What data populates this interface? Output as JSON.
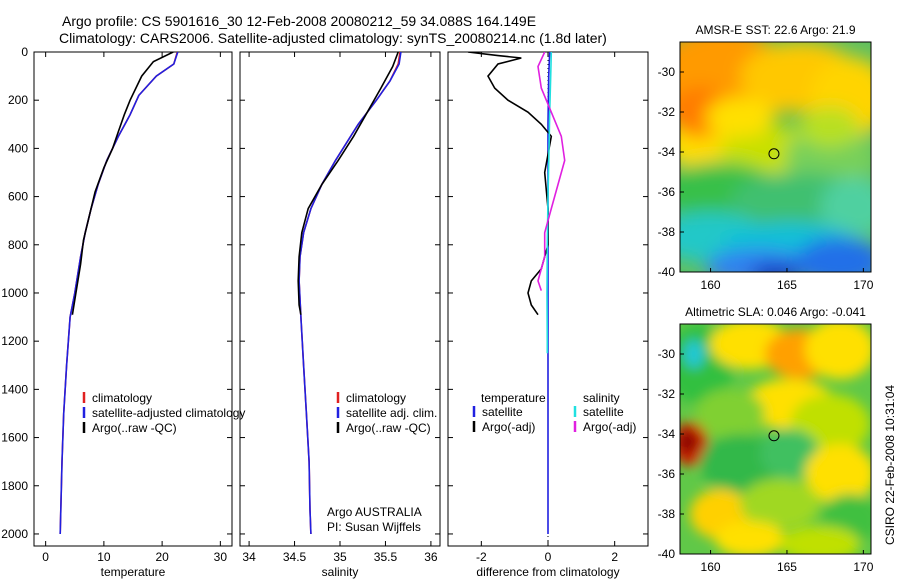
{
  "header": {
    "line1": "Argo profile: CS 5901616_30 12-Feb-2008 20080212_59 34.088S 164.149E",
    "line2": "Climatology: CARS2006. Satellite-adjusted climatology: synTS_20080214.nc (1.8d later)"
  },
  "footer": {
    "credit": "CSIRO 22-Feb-2008 10:31:04",
    "argo_label": "Argo AUSTRALIA",
    "pi_label": "PI: Susan Wijffels"
  },
  "colors": {
    "climatology": "#e02020",
    "satellite": "#2020e0",
    "argo": "#000000",
    "satellite_sal": "#20e0e0",
    "argo_sal": "#e020e0"
  },
  "chart_data": [
    {
      "type": "line",
      "panel": "temperature",
      "xlabel": "temperature",
      "ylabel": "",
      "xlim": [
        -2,
        32
      ],
      "ylim": [
        2050,
        0
      ],
      "xticks": [
        0,
        10,
        20,
        30
      ],
      "yticks": [
        0,
        200,
        400,
        600,
        800,
        1000,
        1200,
        1400,
        1600,
        1800,
        2000
      ],
      "legend": [
        "climatology",
        "satellite-adjusted climatology",
        "Argo(..raw -QC)"
      ],
      "series": [
        {
          "name": "climatology",
          "color": "#e02020",
          "x": [
            22.6,
            22.0,
            19.0,
            16.0,
            14.5,
            12.5,
            10.5,
            9.0,
            7.8,
            6.8,
            6.0,
            5.0,
            4.2,
            3.6,
            3.1,
            2.8,
            2.6,
            2.5
          ],
          "y": [
            0,
            50,
            100,
            180,
            260,
            350,
            450,
            550,
            650,
            750,
            850,
            1000,
            1100,
            1300,
            1500,
            1700,
            1900,
            2000
          ]
        },
        {
          "name": "satellite-adjusted climatology",
          "color": "#2020e0",
          "x": [
            22.7,
            22.0,
            19.0,
            16.0,
            14.5,
            12.5,
            10.5,
            9.0,
            7.8,
            6.8,
            6.0,
            5.0,
            4.2,
            3.6,
            3.1,
            2.8,
            2.6,
            2.5
          ],
          "y": [
            0,
            50,
            100,
            180,
            260,
            350,
            450,
            550,
            650,
            750,
            850,
            1000,
            1100,
            1300,
            1500,
            1700,
            1900,
            2000
          ]
        },
        {
          "name": "Argo(..raw -QC)",
          "color": "#000000",
          "x": [
            21.9,
            18.5,
            16.5,
            15.5,
            14.5,
            13.5,
            12.5,
            11.5,
            10.0,
            8.5,
            7.5,
            6.5,
            6.0,
            5.2,
            4.6
          ],
          "y": [
            0,
            40,
            100,
            150,
            200,
            260,
            330,
            400,
            480,
            580,
            680,
            780,
            880,
            1000,
            1090
          ]
        }
      ]
    },
    {
      "type": "line",
      "panel": "salinity",
      "xlabel": "salinity",
      "ylabel": "",
      "xlim": [
        33.9,
        36.1
      ],
      "ylim": [
        2050,
        0
      ],
      "xticks": [
        34,
        34.5,
        35,
        35.5,
        36
      ],
      "legend": [
        "climatology",
        "satellite adj. clim.",
        "Argo(..raw -QC)"
      ],
      "series": [
        {
          "name": "climatology",
          "color": "#e02020",
          "x": [
            35.66,
            35.64,
            35.55,
            35.4,
            35.2,
            34.95,
            34.8,
            34.68,
            34.6,
            34.56,
            34.55,
            34.57,
            34.6,
            34.63,
            34.66,
            34.67,
            34.68
          ],
          "y": [
            0,
            50,
            120,
            200,
            300,
            450,
            550,
            650,
            750,
            850,
            950,
            1100,
            1300,
            1500,
            1700,
            1900,
            2000
          ]
        },
        {
          "name": "satellite adj. clim.",
          "color": "#2020e0",
          "x": [
            35.67,
            35.65,
            35.55,
            35.4,
            35.2,
            34.95,
            34.8,
            34.68,
            34.6,
            34.56,
            34.55,
            34.57,
            34.6,
            34.63,
            34.66,
            34.67,
            34.68
          ],
          "y": [
            0,
            50,
            120,
            200,
            300,
            450,
            550,
            650,
            750,
            850,
            950,
            1100,
            1300,
            1500,
            1700,
            1900,
            2000
          ]
        },
        {
          "name": "Argo(..raw -QC)",
          "color": "#000000",
          "x": [
            35.64,
            35.58,
            35.45,
            35.3,
            35.15,
            34.98,
            34.8,
            34.65,
            34.58,
            34.55,
            34.54,
            34.55,
            34.57
          ],
          "y": [
            0,
            60,
            150,
            250,
            350,
            450,
            550,
            650,
            750,
            850,
            950,
            1050,
            1090
          ]
        }
      ]
    },
    {
      "type": "line",
      "panel": "difference",
      "xlabel": "difference from climatology",
      "ylabel": "",
      "xlim": [
        -3,
        3
      ],
      "ylim": [
        2050,
        0
      ],
      "xticks": [
        -2,
        0,
        2
      ],
      "legend_headers": [
        "temperature",
        "salinity"
      ],
      "legend": [
        "satellite",
        "Argo(-adj)",
        "satellite",
        "Argo(-adj)"
      ],
      "series": [
        {
          "name": "temperature satellite",
          "color": "#2020e0",
          "x": [
            0.05,
            0.02,
            0.0,
            0.0,
            0.0,
            0.0,
            0.0
          ],
          "y": [
            0,
            100,
            300,
            600,
            900,
            1200,
            2000
          ]
        },
        {
          "name": "temperature Argo(-adj)",
          "color": "#000000",
          "x": [
            -2.4,
            -1.5,
            -0.8,
            -1.5,
            -1.8,
            -1.6,
            -1.2,
            -0.6,
            -0.2,
            0.1,
            -0.1,
            0.0,
            0.0,
            -0.2,
            -0.5,
            -0.6,
            -0.5,
            -0.3
          ],
          "y": [
            0,
            15,
            25,
            50,
            100,
            150,
            200,
            250,
            300,
            350,
            500,
            650,
            800,
            900,
            950,
            1000,
            1050,
            1090
          ]
        },
        {
          "name": "salinity satellite",
          "color": "#20e0e0",
          "x": [
            0.1,
            0.08,
            0.05,
            0.03,
            0.0,
            -0.02,
            -0.03,
            -0.02,
            -0.02
          ],
          "y": [
            0,
            100,
            250,
            400,
            600,
            800,
            1000,
            1200,
            1250
          ]
        },
        {
          "name": "salinity Argo(-adj)",
          "color": "#e020e0",
          "x": [
            -0.1,
            -0.3,
            -0.2,
            0.1,
            0.4,
            0.5,
            0.3,
            0.1,
            -0.1,
            -0.1,
            -0.2,
            -0.3,
            -0.2
          ],
          "y": [
            0,
            60,
            150,
            250,
            350,
            450,
            550,
            650,
            750,
            850,
            900,
            950,
            990
          ]
        }
      ]
    },
    {
      "type": "heatmap",
      "panel": "sst_map",
      "title": "AMSR-E SST: 22.6 Argo: 21.9",
      "xlim": [
        158,
        170.5
      ],
      "ylim": [
        -40,
        -28.5
      ],
      "xticks": [
        160,
        165,
        170
      ],
      "yticks": [
        -30,
        -32,
        -34,
        -36,
        -38,
        -40
      ],
      "marker": {
        "x": 164.149,
        "y": -34.088
      }
    },
    {
      "type": "heatmap",
      "panel": "sla_map",
      "title": "Altimetric SLA: 0.046 Argo: -0.041",
      "xlim": [
        158,
        170.5
      ],
      "ylim": [
        -40,
        -28.5
      ],
      "xticks": [
        160,
        165,
        170
      ],
      "yticks": [
        -30,
        -32,
        -34,
        -36,
        -38,
        -40
      ],
      "marker": {
        "x": 164.149,
        "y": -34.088
      }
    }
  ]
}
